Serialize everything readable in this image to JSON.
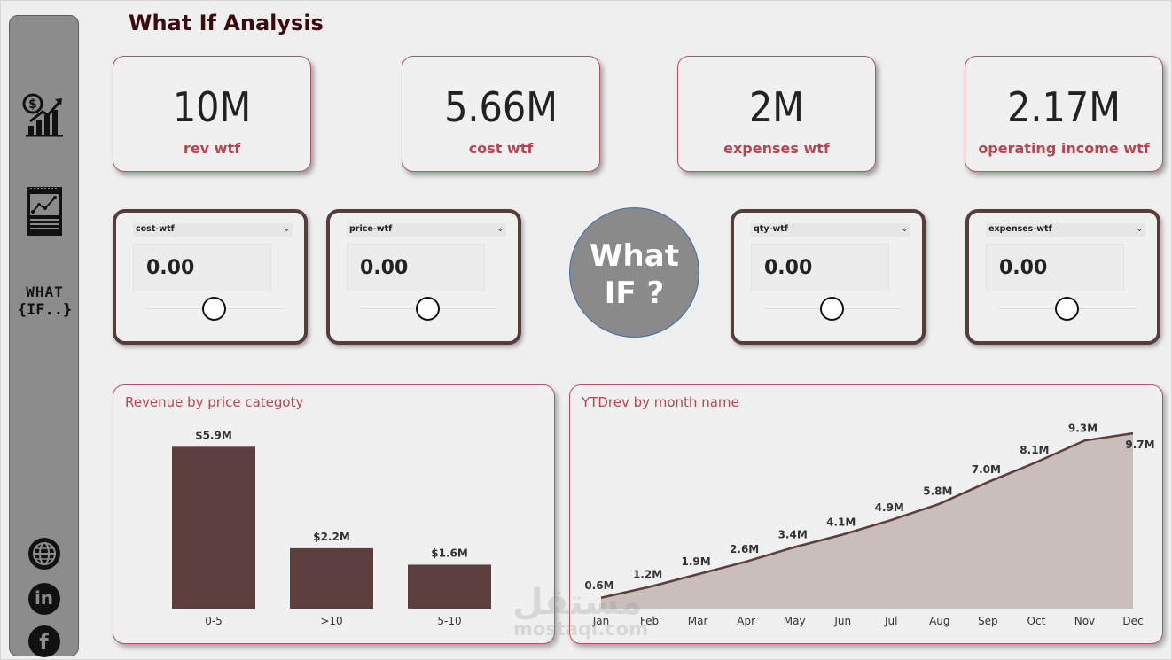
{
  "page_title": "What If Analysis",
  "sidebar": {
    "items": [
      {
        "icon": "revenue-growth-icon"
      },
      {
        "icon": "report-icon"
      },
      {
        "icon": "what-if-logo-icon",
        "line1": "WHAT",
        "line2": "{IF..}"
      }
    ],
    "social": [
      {
        "icon": "globe-icon"
      },
      {
        "icon": "linkedin-icon",
        "text": "in"
      },
      {
        "icon": "facebook-icon",
        "text": "f"
      }
    ]
  },
  "kpis": [
    {
      "value": "10M",
      "label": "rev wtf"
    },
    {
      "value": "5.66M",
      "label": "cost wtf"
    },
    {
      "value": "2M",
      "label": "expenses wtf"
    },
    {
      "value": "2.17M",
      "label": "operating income wtf"
    }
  ],
  "slicers": [
    {
      "name": "cost-wtf",
      "value": "0.00",
      "position": 0.5
    },
    {
      "name": "price-wtf",
      "value": "0.00",
      "position": 0.5
    },
    {
      "name": "qty-wtf",
      "value": "0.00",
      "position": 0.5
    },
    {
      "name": "expenses-wtf",
      "value": "0.00",
      "position": 0.5
    }
  ],
  "what_if_button": {
    "line1": "What",
    "line2": "IF ?"
  },
  "watermark": {
    "arabic": "مستقل",
    "latin": "mostaql.com"
  },
  "colors": {
    "accent": "#b84553",
    "bar": "#5c3e3c",
    "line": "#5c3e3c",
    "area": "#c9bebc",
    "slicer_border": "#573c3c"
  },
  "chart_data": [
    {
      "type": "bar",
      "title": "Revenue by price categoty",
      "categories": [
        "0-5",
        ">10",
        "5-10"
      ],
      "values": [
        5.9,
        2.2,
        1.6
      ],
      "labels": [
        "$5.9M",
        "$2.2M",
        "$1.6M"
      ],
      "ylim": [
        0,
        6.2
      ]
    },
    {
      "type": "area",
      "title": "YTDrev by month name",
      "categories": [
        "Jan",
        "Feb",
        "Mar",
        "Apr",
        "May",
        "Jun",
        "Jul",
        "Aug",
        "Sep",
        "Oct",
        "Nov",
        "Dec"
      ],
      "values": [
        0.6,
        1.2,
        1.9,
        2.6,
        3.4,
        4.1,
        4.9,
        5.8,
        7.0,
        8.1,
        9.3,
        9.7
      ],
      "labels": [
        "0.6M",
        "1.2M",
        "1.9M",
        "2.6M",
        "3.4M",
        "4.1M",
        "4.9M",
        "5.8M",
        "7.0M",
        "8.1M",
        "9.3M",
        "9.7M"
      ],
      "ylim": [
        0,
        10
      ]
    }
  ]
}
